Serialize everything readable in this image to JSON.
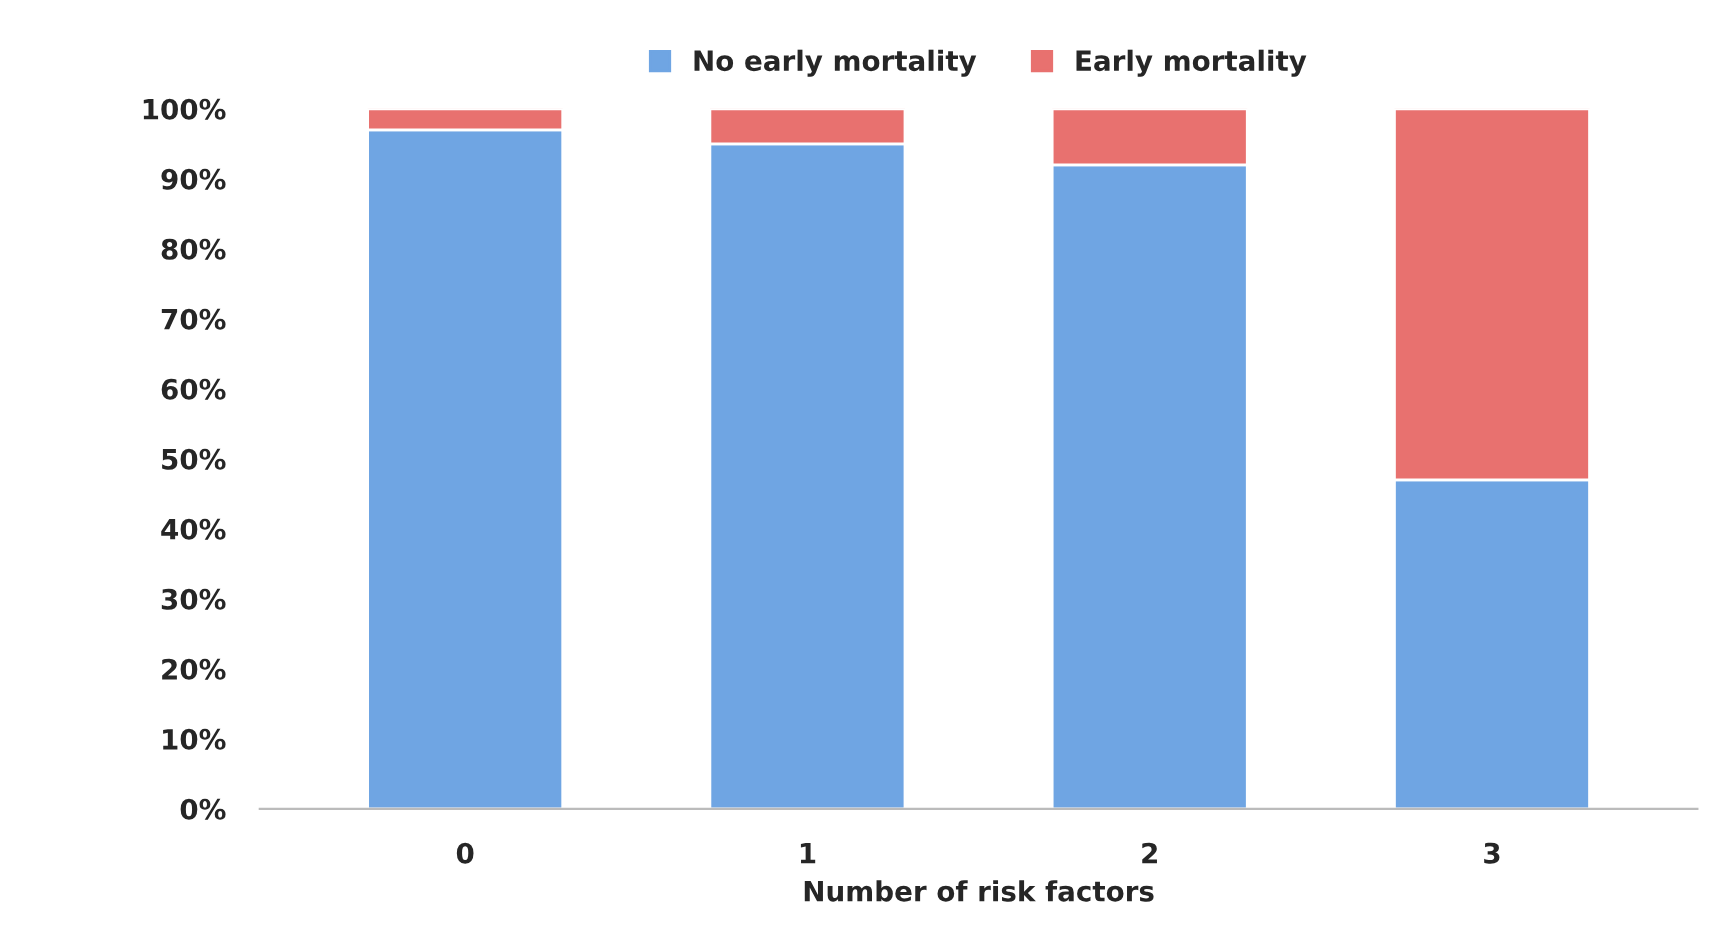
{
  "chart_data": {
    "type": "bar",
    "stacked": true,
    "xlabel": "Number of risk factors",
    "categories": [
      "0",
      "1",
      "2",
      "3"
    ],
    "series": [
      {
        "name": "No early mortality",
        "color": "#6fa5e3",
        "values": [
          97,
          95,
          92,
          47
        ]
      },
      {
        "name": "Early mortality",
        "color": "#e8716f",
        "values": [
          3,
          5,
          8,
          53
        ]
      }
    ],
    "ylim": [
      0,
      100
    ],
    "yticks": [
      {
        "value": 0,
        "label": "0%"
      },
      {
        "value": 10,
        "label": "10%"
      },
      {
        "value": 20,
        "label": "20%"
      },
      {
        "value": 30,
        "label": "30%"
      },
      {
        "value": 40,
        "label": "40%"
      },
      {
        "value": 50,
        "label": "50%"
      },
      {
        "value": 60,
        "label": "60%"
      },
      {
        "value": 70,
        "label": "70%"
      },
      {
        "value": 80,
        "label": "80%"
      },
      {
        "value": 90,
        "label": "90%"
      },
      {
        "value": 100,
        "label": "100%"
      }
    ],
    "grid": false,
    "legend": "top"
  }
}
